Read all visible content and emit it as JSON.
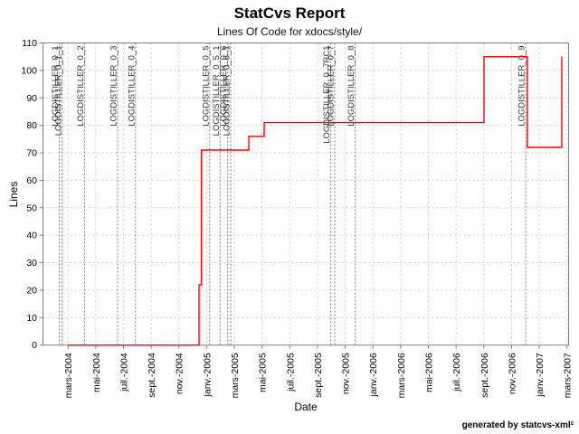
{
  "header": {
    "title": "StatCvs Report",
    "subtitle": "Lines Of Code for xdocs/style/"
  },
  "footer": {
    "credit": "generated by statcvs-xml²"
  },
  "chart_data": {
    "type": "line",
    "title": "Lines Of Code for xdocs/style/",
    "xlabel": "Date",
    "ylabel": "Lines",
    "ylim": [
      0,
      110
    ],
    "y_ticks": [
      0,
      10,
      20,
      30,
      40,
      50,
      60,
      70,
      80,
      90,
      100,
      110
    ],
    "x_tick_labels": [
      "mars-2004",
      "mai-2004",
      "juil.-2004",
      "sept.-2004",
      "nov.-2004",
      "janv.-2005",
      "mars-2005",
      "mai-2005",
      "juil.-2005",
      "sept.-2005",
      "nov.-2005",
      "janv.-2006",
      "mars-2006",
      "mai-2006",
      "juil.-2006",
      "sept.-2006",
      "nov.-2006",
      "janv.-2007",
      "mars-2007"
    ],
    "x_tick_spacing_months": 2,
    "x_origin_label": "mars-2004",
    "xlim_months": [
      -1.84,
      36.12
    ],
    "grid": true,
    "line_color": "#ff0000",
    "axis_color": "#808080",
    "grid_color": "#cccccc",
    "tag_line_color": "#777777",
    "tag_text_color": "#333333",
    "series": [
      {
        "name": "Lines Of Code",
        "color": "#ff0000",
        "points": [
          [
            0,
            0
          ],
          [
            9.45,
            0
          ],
          [
            9.45,
            22
          ],
          [
            9.62,
            22
          ],
          [
            9.62,
            71
          ],
          [
            13.04,
            71
          ],
          [
            13.04,
            76
          ],
          [
            14.15,
            76
          ],
          [
            14.15,
            81
          ],
          [
            30.01,
            81
          ],
          [
            30.01,
            105
          ],
          [
            33.14,
            105
          ],
          [
            33.14,
            72
          ],
          [
            35.62,
            72
          ],
          [
            35.62,
            105
          ]
        ]
      }
    ],
    "tags": [
      {
        "label": "LOGDISTILLER_0_1",
        "t": -0.62
      },
      {
        "label": "LOGDISTILLER_0_1_1",
        "t": -0.42
      },
      {
        "label": "LOGDISTILLER_0_2",
        "t": 1.2
      },
      {
        "label": "LOGDISTILLER_0_3",
        "t": 3.57
      },
      {
        "label": "LOGDISTILLER_0_4",
        "t": 4.87
      },
      {
        "label": "LOGDISTILLER_0_5",
        "t": 10.22
      },
      {
        "label": "LOGDISTILLER_0_5_1",
        "t": 10.97
      },
      {
        "label": "LOGDISTILLER_0_6",
        "t": 11.52
      },
      {
        "label": "LOGDISTILLER_0_6_1",
        "t": 11.74
      },
      {
        "label": "LOGDISTILLER_0_7RC1",
        "t": 18.96
      },
      {
        "label": "LOGDISTILLER_0_7",
        "t": 19.24
      },
      {
        "label": "LOGDISTILLER_0_8",
        "t": 20.71
      },
      {
        "label": "LOGDISTILLER_0_9",
        "t": 33.02
      }
    ]
  }
}
